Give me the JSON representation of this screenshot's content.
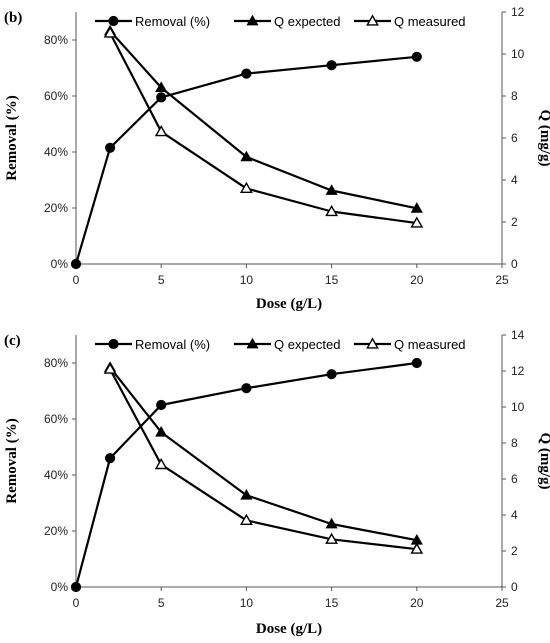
{
  "chart_data": [
    {
      "panel_label": "(b)",
      "type": "line",
      "xlabel": "Dose (g/L)",
      "ylabel": "Removal (%)",
      "y2label": "Q (mg/g)",
      "xlim": [
        0,
        25
      ],
      "xticks": [
        "0",
        "5",
        "10",
        "15",
        "20",
        "25"
      ],
      "ylim": [
        0,
        90
      ],
      "yticks": [
        "0%",
        "20%",
        "40%",
        "60%",
        "80%"
      ],
      "y2lim": [
        0,
        12
      ],
      "y2ticks": [
        "0",
        "2",
        "4",
        "6",
        "8",
        "10",
        "12"
      ],
      "grid": false,
      "legend_position": "top",
      "series": [
        {
          "name": "Removal (%)",
          "axis": "left",
          "marker": "circle-filled",
          "x": [
            0,
            2,
            5,
            10,
            15,
            20
          ],
          "values": [
            0,
            41.5,
            59.5,
            68,
            71,
            74
          ]
        },
        {
          "name": "Q expected",
          "axis": "right",
          "marker": "triangle-filled",
          "x": [
            2,
            5,
            10,
            15,
            20
          ],
          "values": [
            11.1,
            8.4,
            5.1,
            3.5,
            2.65
          ]
        },
        {
          "name": "Q measured",
          "axis": "right",
          "marker": "triangle-open",
          "x": [
            2,
            5,
            10,
            15,
            20
          ],
          "values": [
            11.0,
            6.3,
            3.6,
            2.5,
            1.95
          ]
        }
      ]
    },
    {
      "panel_label": "(c)",
      "type": "line",
      "xlabel": "Dose (g/L)",
      "ylabel": "Removal (%)",
      "y2label": "Q (mg/g)",
      "xlim": [
        0,
        25
      ],
      "xticks": [
        "0",
        "5",
        "10",
        "15",
        "20",
        "25"
      ],
      "ylim": [
        0,
        90
      ],
      "yticks": [
        "0%",
        "20%",
        "40%",
        "60%",
        "80%"
      ],
      "y2lim": [
        0,
        14
      ],
      "y2ticks": [
        "0",
        "2",
        "4",
        "6",
        "8",
        "10",
        "12",
        "14"
      ],
      "grid": false,
      "legend_position": "top",
      "series": [
        {
          "name": "Removal (%)",
          "axis": "left",
          "marker": "circle-filled",
          "x": [
            0,
            2,
            5,
            10,
            15,
            20
          ],
          "values": [
            0,
            46,
            65,
            71,
            76,
            80
          ]
        },
        {
          "name": "Q expected",
          "axis": "right",
          "marker": "triangle-filled",
          "x": [
            2,
            5,
            10,
            15,
            20
          ],
          "values": [
            12.2,
            8.6,
            5.1,
            3.5,
            2.6
          ]
        },
        {
          "name": "Q measured",
          "axis": "right",
          "marker": "triangle-open",
          "x": [
            2,
            5,
            10,
            15,
            20
          ],
          "values": [
            12.1,
            6.8,
            3.7,
            2.65,
            2.1
          ]
        }
      ]
    }
  ]
}
